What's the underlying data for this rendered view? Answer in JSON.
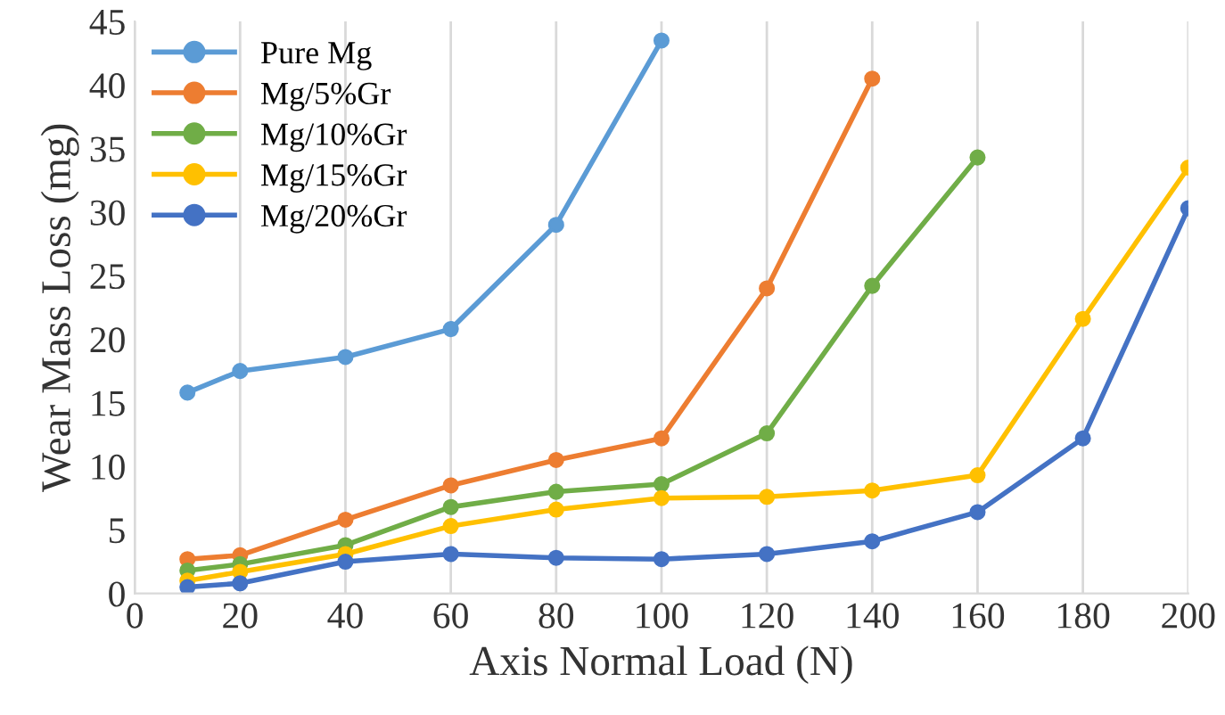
{
  "chart_data": {
    "type": "line",
    "xlabel": "Axis Normal Load (N)",
    "ylabel": "Wear Mass Loss (mg)",
    "xlim": [
      0,
      200
    ],
    "xticks": [
      0,
      20,
      40,
      60,
      80,
      100,
      120,
      140,
      160,
      180,
      200
    ],
    "ylim": [
      0,
      45
    ],
    "yticks": [
      0,
      5,
      10,
      15,
      20,
      25,
      30,
      35,
      40,
      45
    ],
    "grid": "x",
    "legend": "top left",
    "marker": "circle",
    "line_style": "solid",
    "series": [
      {
        "name": "Pure Mg",
        "color": "#5b9bd5",
        "x": [
          10,
          20,
          40,
          60,
          80,
          100
        ],
        "values": [
          15.8,
          17.5,
          18.6,
          20.8,
          29,
          43.5
        ]
      },
      {
        "name": "Mg/5%Gr",
        "color": "#ed7d31",
        "x": [
          10,
          20,
          40,
          60,
          80,
          100,
          120,
          140
        ],
        "values": [
          2.7,
          3.0,
          5.8,
          8.5,
          10.5,
          12.2,
          24,
          40.5
        ]
      },
      {
        "name": "Mg/10%Gr",
        "color": "#70ad47",
        "x": [
          10,
          20,
          40,
          60,
          80,
          100,
          120,
          140,
          160
        ],
        "values": [
          1.8,
          2.3,
          3.8,
          6.8,
          8.0,
          8.6,
          12.6,
          24.2,
          34.3
        ]
      },
      {
        "name": "Mg/15%Gr",
        "color": "#ffc000",
        "x": [
          10,
          20,
          40,
          60,
          80,
          100,
          120,
          140,
          160,
          180,
          200
        ],
        "values": [
          1.0,
          1.7,
          3.1,
          5.3,
          6.6,
          7.5,
          7.6,
          8.1,
          9.3,
          21.6,
          33.5
        ]
      },
      {
        "name": "Mg/20%Gr",
        "color": "#4472c4",
        "x": [
          10,
          20,
          40,
          60,
          80,
          100,
          120,
          140,
          160,
          180,
          200
        ],
        "values": [
          0.5,
          0.8,
          2.5,
          3.1,
          2.8,
          2.7,
          3.1,
          4.1,
          6.4,
          12.2,
          30.3
        ]
      }
    ]
  }
}
